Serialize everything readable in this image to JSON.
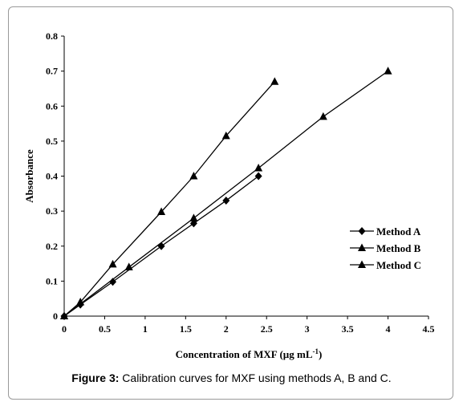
{
  "figure": {
    "label": "Figure 3:",
    "text": " Calibration curves for MXF using methods A, B and C."
  },
  "chart_data": {
    "type": "line",
    "xlabel": "Concentration of MXF (µg mL",
    "xlabel_sup": "-1",
    "xlabel_suffix": ")",
    "ylabel": "Absorbance",
    "xlim": [
      0,
      4.5
    ],
    "ylim": [
      0,
      0.8
    ],
    "x_ticks": [
      0,
      0.5,
      1,
      1.5,
      2,
      2.5,
      3,
      3.5,
      4,
      4.5
    ],
    "x_tick_labels": [
      "0",
      "0.5",
      "1",
      "1.5",
      "2",
      "2.5",
      "3",
      "3.5",
      "4",
      "4.5"
    ],
    "y_ticks": [
      0,
      0.1,
      0.2,
      0.3,
      0.4,
      0.5,
      0.6,
      0.7,
      0.8
    ],
    "y_tick_labels": [
      "0",
      "0.1",
      "0.2",
      "0.3",
      "0.4",
      "0.5",
      "0.6",
      "0.7",
      "0.8"
    ],
    "grid": false,
    "legend_position": "right",
    "series": [
      {
        "name": "Method A",
        "marker": "diamond",
        "x": [
          0,
          0.2,
          0.6,
          1.2,
          1.6,
          2.0,
          2.4
        ],
        "y": [
          0,
          0.033,
          0.098,
          0.2,
          0.265,
          0.33,
          0.4
        ]
      },
      {
        "name": "Method B",
        "marker": "triangle",
        "x": [
          0,
          0.2,
          0.6,
          1.2,
          1.6,
          2.0,
          2.6
        ],
        "y": [
          0,
          0.04,
          0.148,
          0.298,
          0.4,
          0.515,
          0.67
        ]
      },
      {
        "name": "Method C",
        "marker": "triangle",
        "x": [
          0,
          0.8,
          1.6,
          2.4,
          3.2,
          4.0
        ],
        "y": [
          0,
          0.14,
          0.28,
          0.423,
          0.57,
          0.7
        ]
      }
    ]
  }
}
